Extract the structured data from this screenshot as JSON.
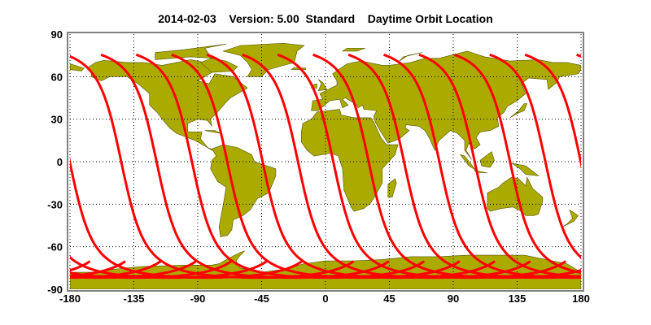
{
  "title": "2014-02-03    Version: 5.00  Standard    Daytime Orbit Location",
  "colors": {
    "land": "#aaaa00",
    "land_outline": "#555500",
    "orbit_track": "#ff0000",
    "frame": "#808080",
    "grid": "#000000"
  },
  "chart_data": {
    "type": "map",
    "projection": "equirectangular",
    "title": "2014-02-03    Version: 5.00  Standard    Daytime Orbit Location",
    "xlim": [
      -180,
      180
    ],
    "ylim": [
      -90,
      90
    ],
    "x_ticks": [
      "-180",
      "-135",
      "-90",
      "-45",
      "0",
      "45",
      "90",
      "135",
      "180"
    ],
    "y_ticks": [
      "90",
      "60",
      "30",
      "0",
      "-30",
      "-60",
      "-90"
    ],
    "grid": "dotted",
    "series": [
      {
        "kind": "orbit-tracks",
        "equator_crossing_lon": [
          -143.9,
          -119.0,
          -94.1,
          -69.2,
          -44.3,
          -19.4,
          5.5,
          30.4,
          55.3,
          80.2,
          105.1,
          130.0,
          154.9,
          179.8
        ]
      }
    ]
  }
}
